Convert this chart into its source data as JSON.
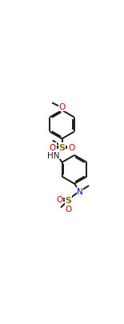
{
  "bg_color": "#ffffff",
  "line_color": "#1a1a1a",
  "o_color": "#cc0000",
  "n_color": "#0000cc",
  "s_color": "#8b7500",
  "lw": 1.4,
  "figsize": [
    1.55,
    4.06
  ],
  "dpi": 100,
  "xlim": [
    0,
    1
  ],
  "ylim": [
    0,
    1
  ]
}
